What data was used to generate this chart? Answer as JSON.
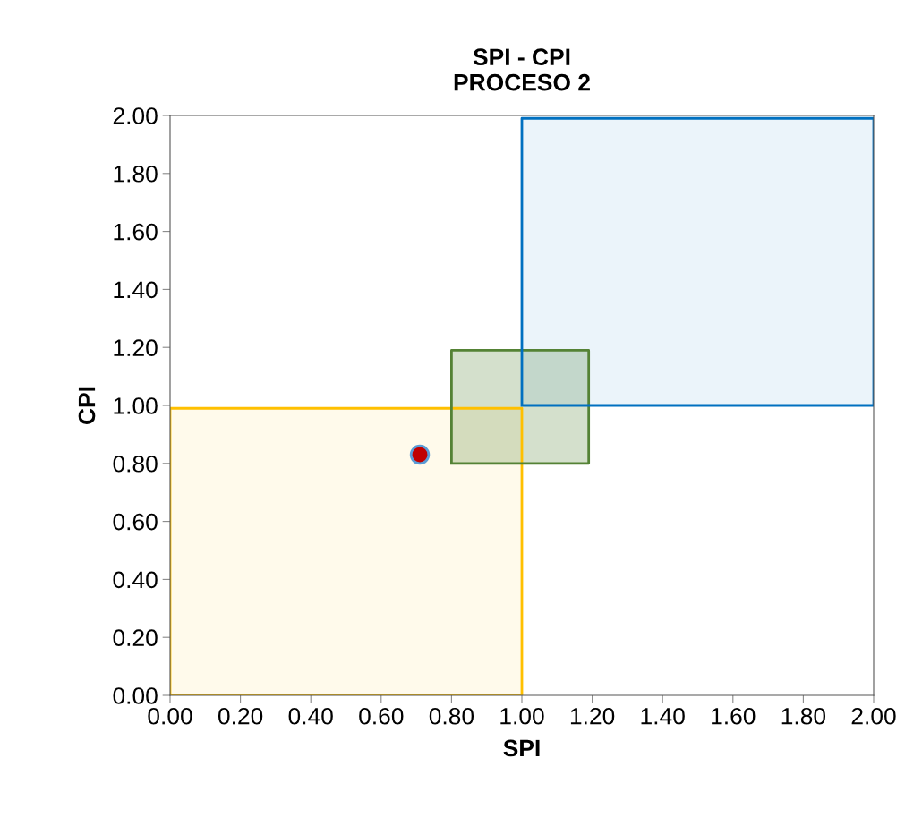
{
  "chart_data": {
    "type": "scatter",
    "title": "SPI - CPI\nPROCESO 2",
    "xlabel": "SPI",
    "ylabel": "CPI",
    "series": [
      {
        "type": "area",
        "color": "#ffc000",
        "x": [
          0,
          1.0,
          1.0,
          0,
          0
        ],
        "values": [
          0,
          0,
          0.99,
          0.99,
          0
        ]
      },
      {
        "type": "area",
        "color": "#548235",
        "x": [
          0.8,
          1.19,
          1.19,
          0.8,
          0.8
        ],
        "values": [
          0.8,
          0.8,
          1.19,
          1.19,
          0.8
        ]
      },
      {
        "type": "area",
        "color": "#0070c0",
        "x": [
          1.0,
          2.0,
          2.0,
          1.0,
          1.0
        ],
        "values": [
          1.0,
          1.0,
          1.99,
          1.99,
          1.0
        ]
      },
      {
        "color": "#c00000",
        "marker": "circle",
        "x": [
          0.71
        ],
        "values": [
          0.83
        ]
      }
    ],
    "grid": false,
    "xlim": [
      0,
      2
    ],
    "ylim": [
      0,
      2
    ],
    "xticks": [
      {
        "value": 0,
        "label": "0.00"
      },
      {
        "value": 0.2,
        "label": "0.20"
      },
      {
        "value": 0.4,
        "label": "0.40"
      },
      {
        "value": 0.6,
        "label": "0.60"
      },
      {
        "value": 0.8,
        "label": "0.80"
      },
      {
        "value": 1.0,
        "label": "1.00"
      },
      {
        "value": 1.2,
        "label": "1.20"
      },
      {
        "value": 1.4,
        "label": "1.40"
      },
      {
        "value": 1.6,
        "label": "1.60"
      },
      {
        "value": 1.8,
        "label": "1.80"
      },
      {
        "value": 2.0,
        "label": "2.00"
      }
    ],
    "yticks": [
      {
        "value": 0,
        "label": "0.00"
      },
      {
        "value": 0.2,
        "label": "0.20"
      },
      {
        "value": 0.4,
        "label": "0.40"
      },
      {
        "value": 0.6,
        "label": "0.60"
      },
      {
        "value": 0.8,
        "label": "0.80"
      },
      {
        "value": 1.0,
        "label": "1.00"
      },
      {
        "value": 1.2,
        "label": "1.20"
      },
      {
        "value": 1.4,
        "label": "1.40"
      },
      {
        "value": 1.6,
        "label": "1.60"
      },
      {
        "value": 1.8,
        "label": "1.80"
      },
      {
        "value": 2.0,
        "label": "2.00"
      }
    ]
  }
}
